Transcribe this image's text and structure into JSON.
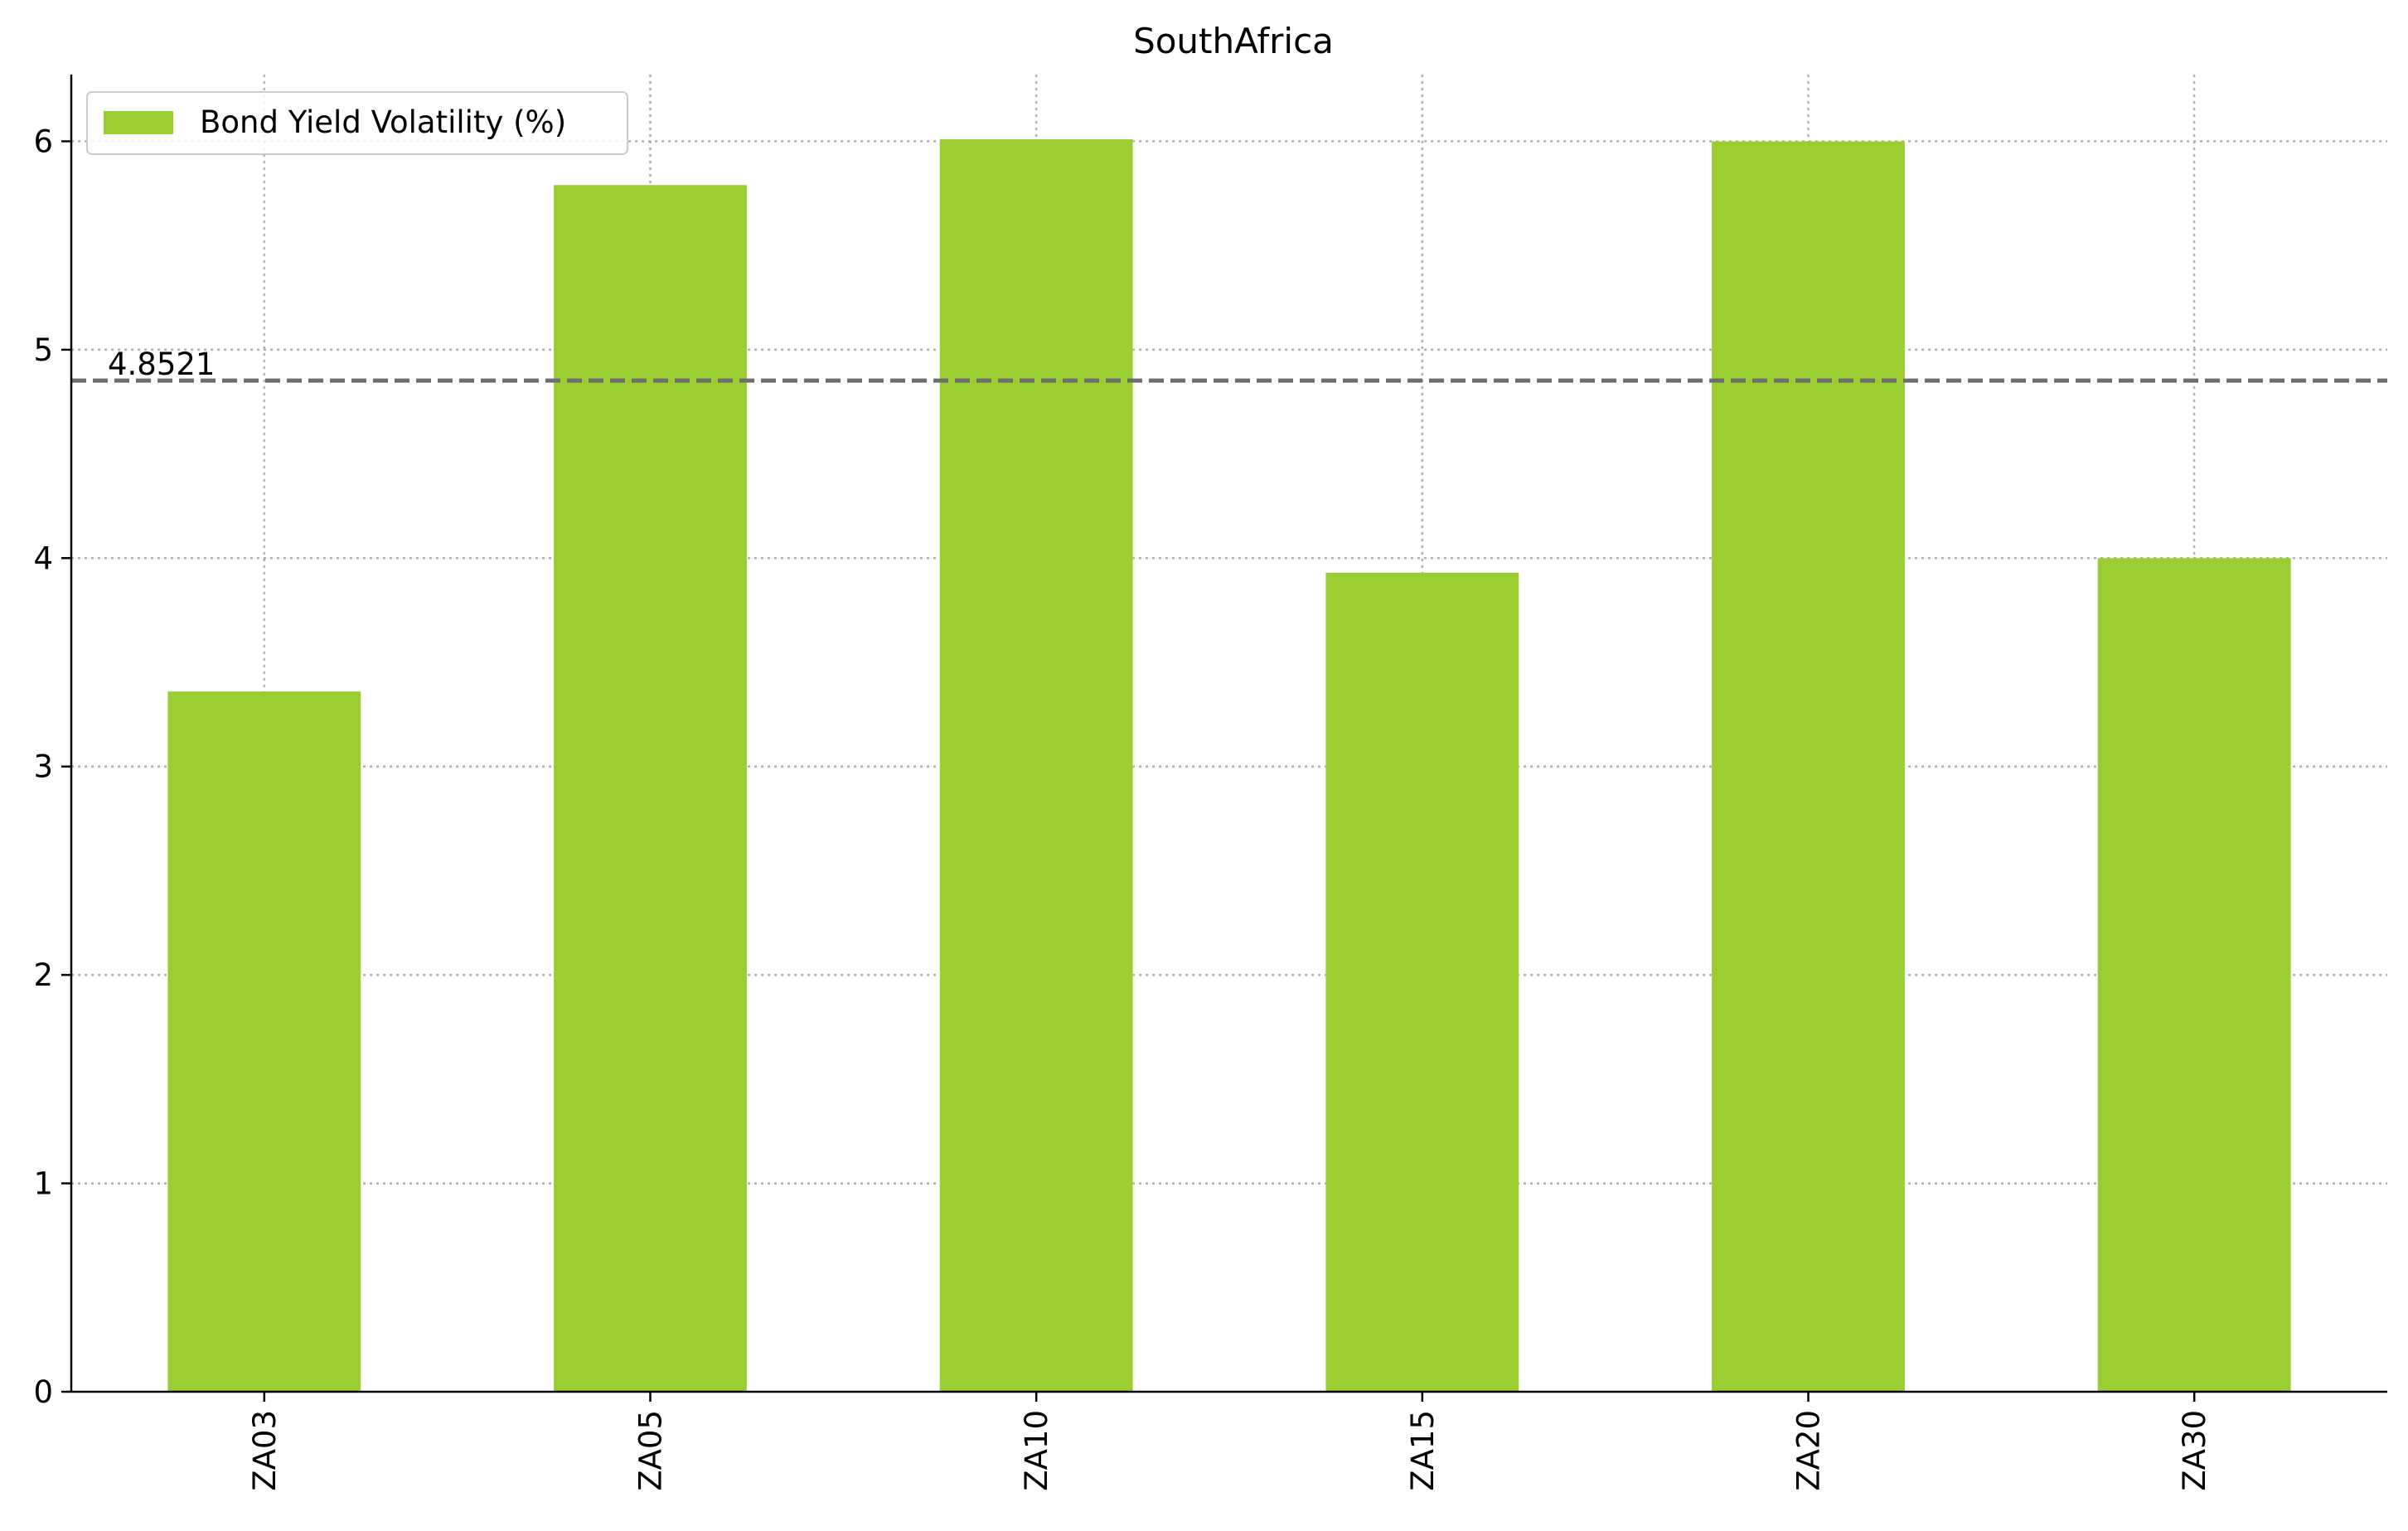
{
  "chart_data": {
    "type": "bar",
    "title": "SouthAfrica",
    "xlabel": "",
    "ylabel": "",
    "categories": [
      "ZA03",
      "ZA05",
      "ZA10",
      "ZA15",
      "ZA20",
      "ZA30"
    ],
    "series": [
      {
        "name": "Bond Yield Volatility (%)",
        "values": [
          3.36,
          5.79,
          6.01,
          3.93,
          6.0,
          4.0
        ],
        "color": "#9acd32"
      }
    ],
    "ylim": [
      0,
      6.32
    ],
    "yticks": [
      0,
      1,
      2,
      3,
      4,
      5,
      6
    ],
    "reference_line": {
      "value": 4.8521,
      "label": "4.8521",
      "color": "#6e6e6e",
      "style": "dashed"
    },
    "grid": true,
    "legend_position": "top-left"
  }
}
